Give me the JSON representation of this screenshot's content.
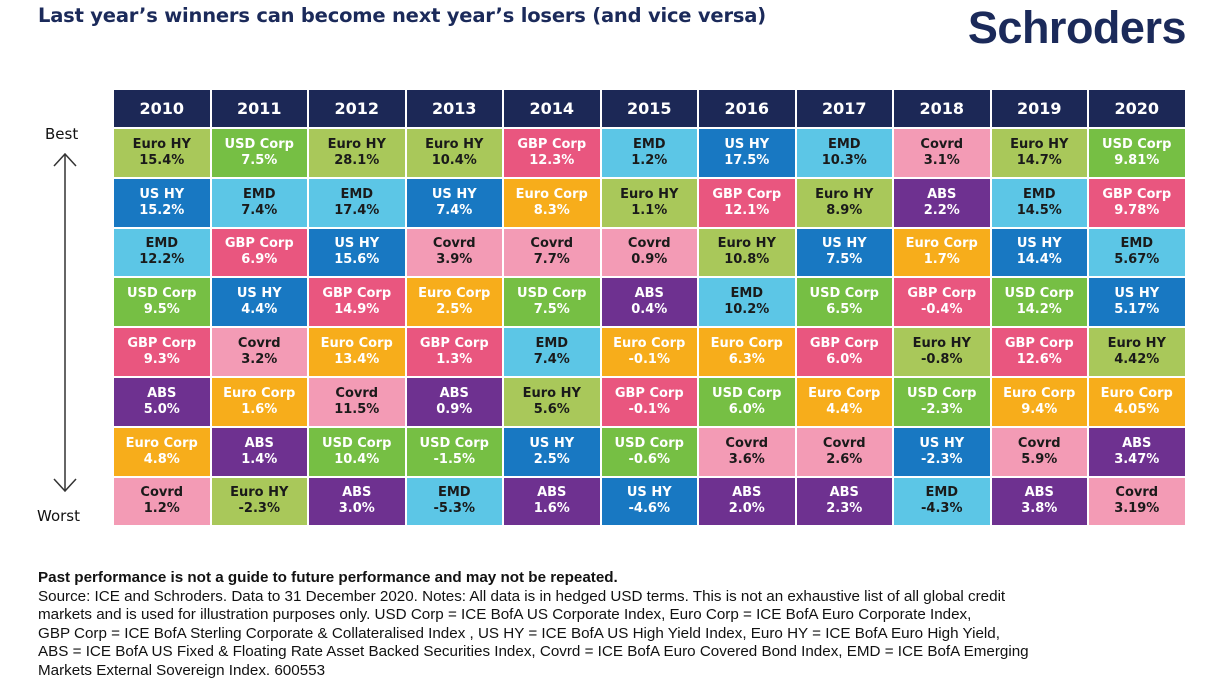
{
  "title": "Last year’s winners can become next year’s losers (and vice versa)",
  "logo": "Schroders",
  "best_label": "Best",
  "worst_label": "Worst",
  "footer": {
    "bold": "Past performance is not a guide to future performance and may not be repeated.",
    "lines": [
      "Source: ICE and Schroders. Data to 31 December 2020. Notes: All data is in hedged USD terms. This is not an exhaustive list of all global credit",
      "markets and is used for illustration purposes only. USD Corp = ICE BofA US Corporate Index, Euro Corp = ICE BofA Euro Corporate Index,",
      "GBP Corp = ICE BofA Sterling Corporate & Collateralised Index , US HY = ICE BofA US High Yield Index, Euro HY = ICE BofA Euro High Yield,",
      "ABS = ICE BofA US Fixed & Floating Rate Asset Backed Securities Index, Covrd = ICE BofA Euro Covered Bond Index, EMD = ICE BofA Emerging",
      "Markets External Sovereign Index. 600553"
    ]
  },
  "colors": {
    "header": "#1c2856",
    "Euro HY": "#a9c85a",
    "US HY": "#1878c2",
    "EMD": "#5cc6e6",
    "USD Corp": "#76bf44",
    "GBP Corp": "#e9567f",
    "ABS": "#6e3190",
    "Euro Corp": "#f7ad1b",
    "Covrd": "#f39bb5"
  },
  "text_colors": {
    "Euro HY": "#1a1a1a",
    "US HY": "#ffffff",
    "EMD": "#1a1a1a",
    "USD Corp": "#ffffff",
    "GBP Corp": "#ffffff",
    "ABS": "#ffffff",
    "Euro Corp": "#ffffff",
    "Covrd": "#1a1a1a"
  },
  "chart_data": {
    "type": "table",
    "title": "Last year’s winners can become next year’s losers (and vice versa)",
    "columns": [
      "2010",
      "2011",
      "2012",
      "2013",
      "2014",
      "2015",
      "2016",
      "2017",
      "2018",
      "2019",
      "2020"
    ],
    "rank_order": "Best (top) to Worst (bottom)",
    "years": [
      {
        "year": "2010",
        "cells": [
          {
            "name": "Euro HY",
            "value": "15.4%"
          },
          {
            "name": "US HY",
            "value": "15.2%"
          },
          {
            "name": "EMD",
            "value": "12.2%"
          },
          {
            "name": "USD Corp",
            "value": "9.5%"
          },
          {
            "name": "GBP Corp",
            "value": "9.3%"
          },
          {
            "name": "ABS",
            "value": "5.0%"
          },
          {
            "name": "Euro Corp",
            "value": "4.8%"
          },
          {
            "name": "Covrd",
            "value": "1.2%"
          }
        ]
      },
      {
        "year": "2011",
        "cells": [
          {
            "name": "USD Corp",
            "value": "7.5%"
          },
          {
            "name": "EMD",
            "value": "7.4%"
          },
          {
            "name": "GBP Corp",
            "value": "6.9%"
          },
          {
            "name": "US HY",
            "value": "4.4%"
          },
          {
            "name": "Covrd",
            "value": "3.2%"
          },
          {
            "name": "Euro Corp",
            "value": "1.6%"
          },
          {
            "name": "ABS",
            "value": "1.4%"
          },
          {
            "name": "Euro HY",
            "value": "-2.3%"
          }
        ]
      },
      {
        "year": "2012",
        "cells": [
          {
            "name": "Euro HY",
            "value": "28.1%"
          },
          {
            "name": "EMD",
            "value": "17.4%"
          },
          {
            "name": "US HY",
            "value": "15.6%"
          },
          {
            "name": "GBP Corp",
            "value": "14.9%"
          },
          {
            "name": "Euro Corp",
            "value": "13.4%"
          },
          {
            "name": "Covrd",
            "value": "11.5%"
          },
          {
            "name": "USD Corp",
            "value": "10.4%"
          },
          {
            "name": "ABS",
            "value": "3.0%"
          }
        ]
      },
      {
        "year": "2013",
        "cells": [
          {
            "name": "Euro HY",
            "value": "10.4%"
          },
          {
            "name": "US HY",
            "value": "7.4%"
          },
          {
            "name": "Covrd",
            "value": "3.9%"
          },
          {
            "name": "Euro Corp",
            "value": "2.5%"
          },
          {
            "name": "GBP Corp",
            "value": "1.3%"
          },
          {
            "name": "ABS",
            "value": "0.9%"
          },
          {
            "name": "USD Corp",
            "value": "-1.5%"
          },
          {
            "name": "EMD",
            "value": "-5.3%"
          }
        ]
      },
      {
        "year": "2014",
        "cells": [
          {
            "name": "GBP Corp",
            "value": "12.3%"
          },
          {
            "name": "Euro Corp",
            "value": "8.3%"
          },
          {
            "name": "Covrd",
            "value": "7.7%"
          },
          {
            "name": "USD Corp",
            "value": "7.5%"
          },
          {
            "name": "EMD",
            "value": "7.4%"
          },
          {
            "name": "Euro HY",
            "value": "5.6%"
          },
          {
            "name": "US HY",
            "value": "2.5%"
          },
          {
            "name": "ABS",
            "value": "1.6%"
          }
        ]
      },
      {
        "year": "2015",
        "cells": [
          {
            "name": "EMD",
            "value": "1.2%"
          },
          {
            "name": "Euro HY",
            "value": "1.1%"
          },
          {
            "name": "Covrd",
            "value": "0.9%"
          },
          {
            "name": "ABS",
            "value": "0.4%"
          },
          {
            "name": "Euro Corp",
            "value": "-0.1%"
          },
          {
            "name": "GBP Corp",
            "value": "-0.1%"
          },
          {
            "name": "USD Corp",
            "value": "-0.6%"
          },
          {
            "name": "US HY",
            "value": "-4.6%"
          }
        ]
      },
      {
        "year": "2016",
        "cells": [
          {
            "name": "US HY",
            "value": "17.5%"
          },
          {
            "name": "GBP Corp",
            "value": "12.1%"
          },
          {
            "name": "Euro HY",
            "value": "10.8%"
          },
          {
            "name": "EMD",
            "value": "10.2%"
          },
          {
            "name": "Euro Corp",
            "value": "6.3%"
          },
          {
            "name": "USD Corp",
            "value": "6.0%"
          },
          {
            "name": "Covrd",
            "value": "3.6%"
          },
          {
            "name": "ABS",
            "value": "2.0%"
          }
        ]
      },
      {
        "year": "2017",
        "cells": [
          {
            "name": "EMD",
            "value": "10.3%"
          },
          {
            "name": "Euro HY",
            "value": "8.9%"
          },
          {
            "name": "US HY",
            "value": "7.5%"
          },
          {
            "name": "USD Corp",
            "value": "6.5%"
          },
          {
            "name": "GBP Corp",
            "value": "6.0%"
          },
          {
            "name": "Euro Corp",
            "value": "4.4%"
          },
          {
            "name": "Covrd",
            "value": "2.6%"
          },
          {
            "name": "ABS",
            "value": "2.3%"
          }
        ]
      },
      {
        "year": "2018",
        "cells": [
          {
            "name": "Covrd",
            "value": "3.1%"
          },
          {
            "name": "ABS",
            "value": "2.2%"
          },
          {
            "name": "Euro Corp",
            "value": "1.7%"
          },
          {
            "name": "GBP Corp",
            "value": "-0.4%"
          },
          {
            "name": "Euro HY",
            "value": "-0.8%"
          },
          {
            "name": "USD Corp",
            "value": "-2.3%"
          },
          {
            "name": "US HY",
            "value": "-2.3%"
          },
          {
            "name": "EMD",
            "value": "-4.3%"
          }
        ]
      },
      {
        "year": "2019",
        "cells": [
          {
            "name": "Euro HY",
            "value": "14.7%"
          },
          {
            "name": "EMD",
            "value": "14.5%"
          },
          {
            "name": "US HY",
            "value": "14.4%"
          },
          {
            "name": "USD Corp",
            "value": "14.2%"
          },
          {
            "name": "GBP Corp",
            "value": "12.6%"
          },
          {
            "name": "Euro Corp",
            "value": "9.4%"
          },
          {
            "name": "Covrd",
            "value": "5.9%"
          },
          {
            "name": "ABS",
            "value": "3.8%"
          }
        ]
      },
      {
        "year": "2020",
        "cells": [
          {
            "name": "USD Corp",
            "value": "9.81%"
          },
          {
            "name": "GBP Corp",
            "value": "9.78%"
          },
          {
            "name": "EMD",
            "value": "5.67%"
          },
          {
            "name": "US HY",
            "value": "5.17%"
          },
          {
            "name": "Euro HY",
            "value": "4.42%"
          },
          {
            "name": "Euro Corp",
            "value": "4.05%"
          },
          {
            "name": "ABS",
            "value": "3.47%"
          },
          {
            "name": "Covrd",
            "value": "3.19%"
          }
        ]
      }
    ]
  }
}
